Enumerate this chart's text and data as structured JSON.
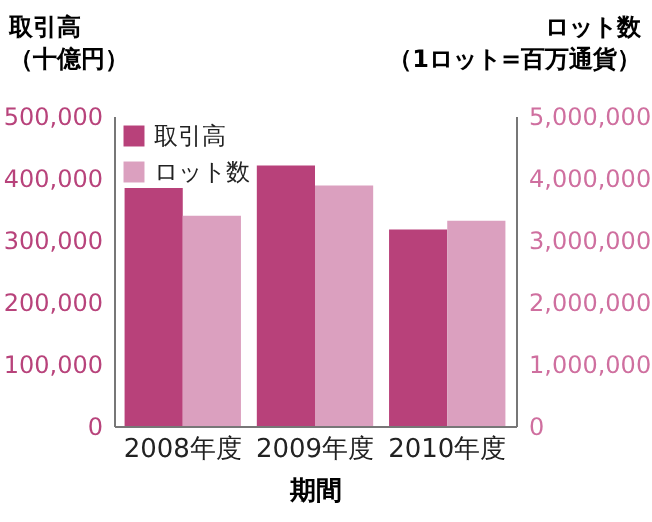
{
  "chart_data": {
    "type": "bar",
    "categories": [
      "2008年度",
      "2009年度",
      "2010年度"
    ],
    "series": [
      {
        "name": "取引高",
        "color": "#b8417a",
        "values": [
          384000,
          420000,
          317000
        ]
      },
      {
        "name": "ロット数",
        "color": "#dba0bf",
        "values": [
          3390000,
          3880000,
          3310000
        ],
        "axis": "y2"
      }
    ],
    "xlabel": "期間",
    "ylabel": "取引高（十億円）",
    "y2label": "ロット数（1ロット=百万通貨）",
    "ylim": [
      0,
      500000
    ],
    "yticks": [
      0,
      {
        "value": 100000,
        "label": "100,000"
      },
      {
        "value": 200000,
        "label": "200,000"
      },
      {
        "value": 300000,
        "label": "300,000"
      },
      {
        "value": 400000,
        "label": "400,000"
      },
      {
        "value": 500000,
        "label": "500,000"
      }
    ],
    "y2lim": [
      0,
      5000000
    ],
    "y2ticks": [
      0,
      {
        "value": 1000000,
        "label": "1,000,000"
      },
      {
        "value": 2000000,
        "label": "2,000,000"
      },
      {
        "value": 3000000,
        "label": "3,000,000"
      },
      {
        "value": 4000000,
        "label": "4,000,000"
      },
      {
        "value": 5000000,
        "label": "5,000,000"
      }
    ],
    "legend": "top left",
    "grid": false
  }
}
